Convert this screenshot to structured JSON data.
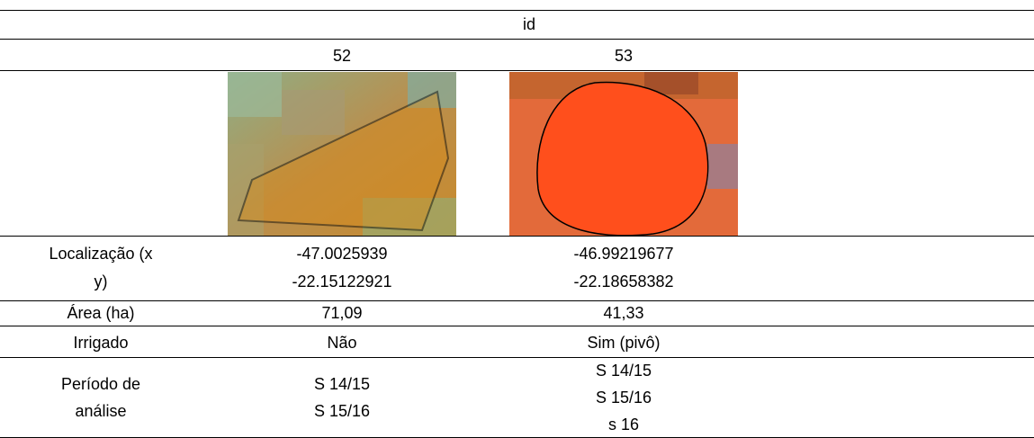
{
  "header": {
    "title": "id"
  },
  "row_labels": {
    "location": [
      "Localização (x",
      "y)"
    ],
    "area": "Área (ha)",
    "irrigated": "Irrigado",
    "period": [
      "Período de",
      "análise"
    ]
  },
  "columns": [
    {
      "id": "52",
      "location": [
        "-47.0025939",
        "-22.15122921"
      ],
      "area": "71,09",
      "irrigated": "Não",
      "period": [
        "S 14/15",
        "S 15/16"
      ]
    },
    {
      "id": "53",
      "location": [
        "-46.99219677",
        "-22.18658382"
      ],
      "area": "41,33",
      "irrigated": "Sim (pivô)",
      "period": [
        "S 14/15",
        "S 15/16",
        "s 16"
      ]
    }
  ]
}
